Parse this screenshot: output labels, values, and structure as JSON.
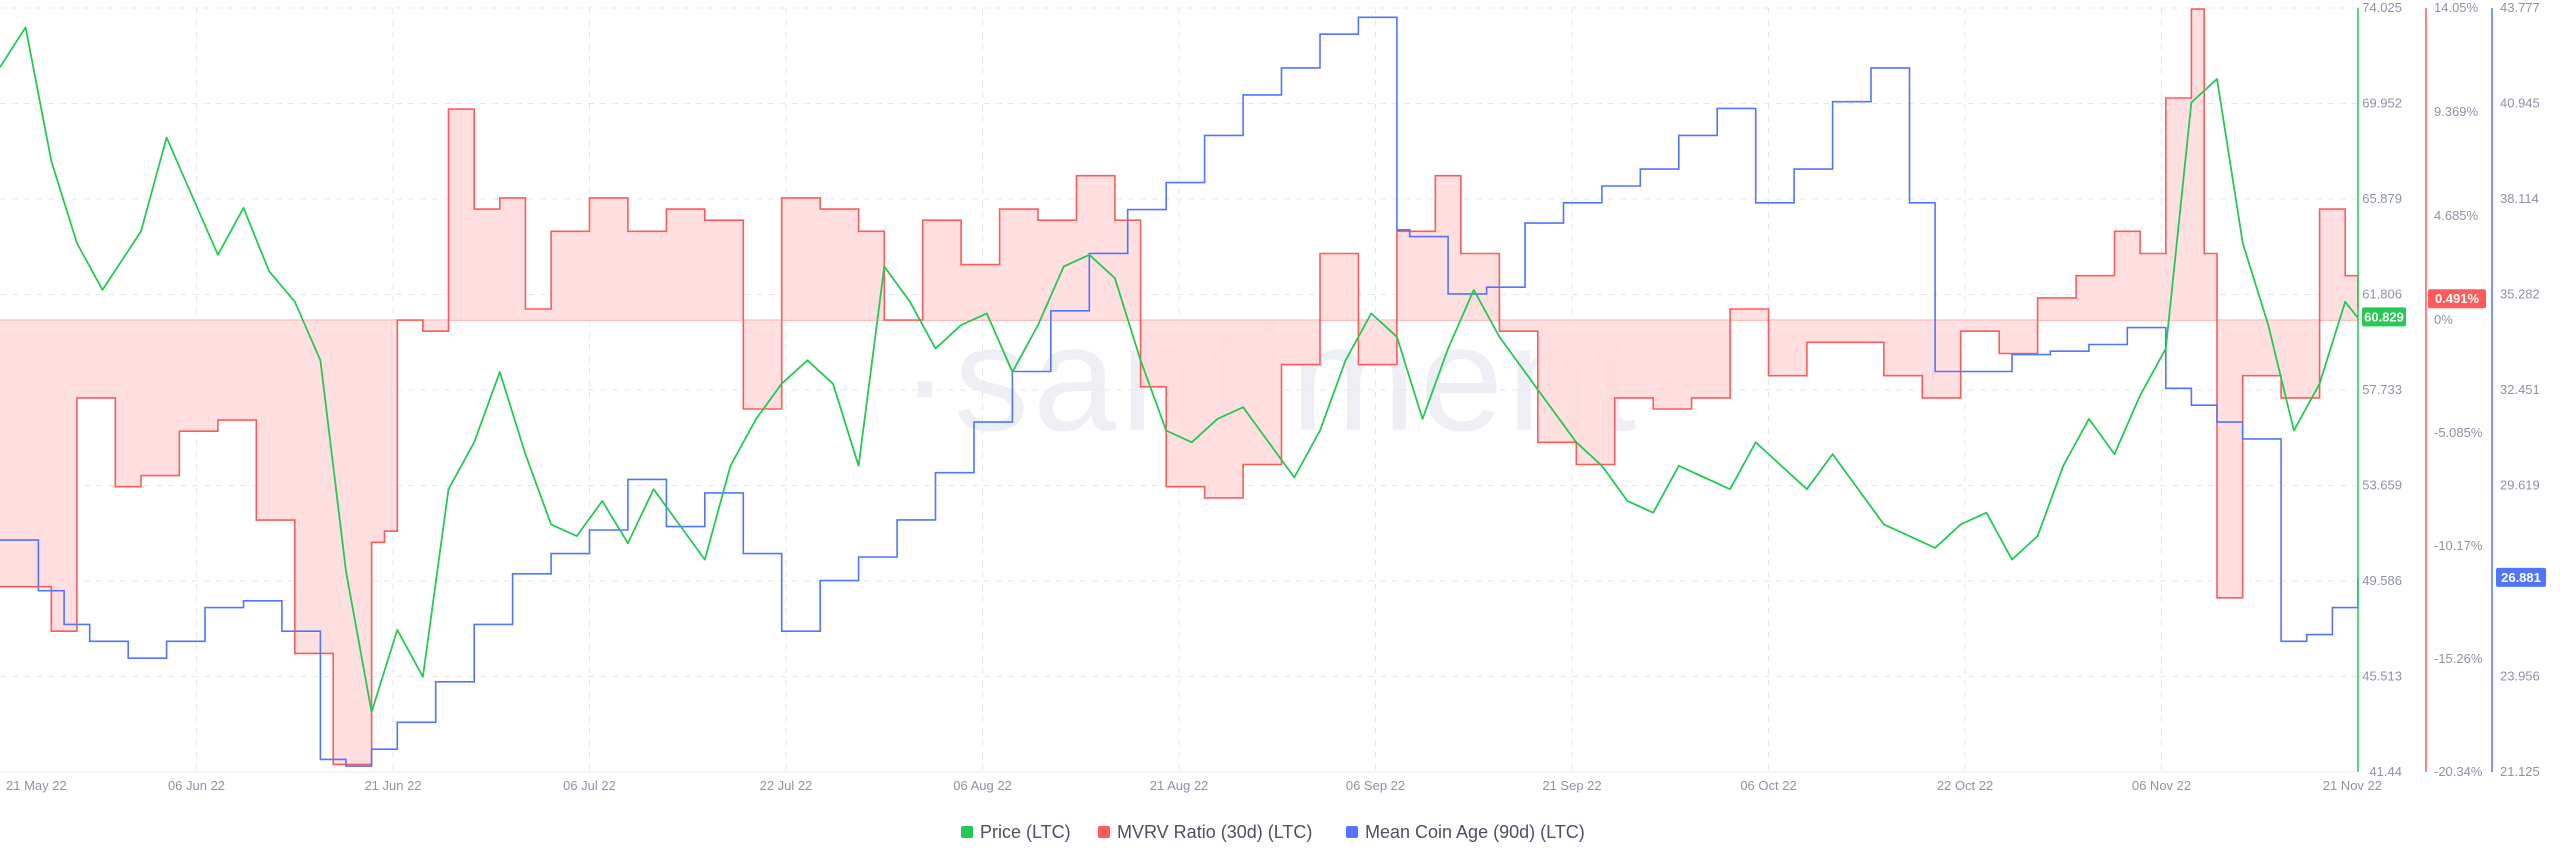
{
  "watermark": "·santiment·",
  "colors": {
    "price": "#26c953",
    "mvrv": "#ff5b5b",
    "age": "#5275ff",
    "mvrv_fill": "#ffd9d9",
    "grid": "#e6e8ef",
    "tick": "#8d93a5"
  },
  "legend": [
    {
      "label": "Price (LTC)",
      "color": "#26c953"
    },
    {
      "label": "MVRV Ratio (30d) (LTC)",
      "color": "#ff5b5b"
    },
    {
      "label": "Mean Coin Age (90d) (LTC)",
      "color": "#5275ff"
    }
  ],
  "x_labels": [
    "21 May 22",
    "06 Jun 22",
    "21 Jun 22",
    "06 Jul 22",
    "22 Jul 22",
    "06 Aug 22",
    "21 Aug 22",
    "06 Sep 22",
    "21 Sep 22",
    "06 Oct 22",
    "22 Oct 22",
    "06 Nov 22",
    "21 Nov 22"
  ],
  "price_ticks": [
    "74.025",
    "69.952",
    "65.879",
    "61.806",
    "57.733",
    "53.659",
    "49.586",
    "45.513",
    "41.44"
  ],
  "mvrv_ticks": [
    "14.05%",
    "9.369%",
    "4.685%",
    "0%",
    "-5.085%",
    "-10.17%",
    "-15.26%",
    "-20.34%"
  ],
  "age_ticks": [
    "43.777",
    "40.945",
    "38.114",
    "35.282",
    "32.451",
    "29.619",
    "26.881",
    "23.956",
    "21.125"
  ],
  "badges": {
    "price": "60.829",
    "mvrv": "0.491%",
    "age": "26.881"
  },
  "chart_data": {
    "type": "line",
    "x_start": "2022-05-21",
    "x_end": "2022-11-21",
    "series": [
      {
        "name": "Price (LTC)",
        "axis": "right-1",
        "ylim": [
          41.44,
          74.025
        ],
        "x": [
          "2022-05-21",
          "2022-05-23",
          "2022-05-25",
          "2022-05-27",
          "2022-05-29",
          "2022-06-01",
          "2022-06-03",
          "2022-06-05",
          "2022-06-07",
          "2022-06-09",
          "2022-06-11",
          "2022-06-13",
          "2022-06-15",
          "2022-06-17",
          "2022-06-19",
          "2022-06-21",
          "2022-06-23",
          "2022-06-25",
          "2022-06-27",
          "2022-06-29",
          "2022-07-01",
          "2022-07-03",
          "2022-07-05",
          "2022-07-07",
          "2022-07-09",
          "2022-07-11",
          "2022-07-13",
          "2022-07-15",
          "2022-07-17",
          "2022-07-19",
          "2022-07-21",
          "2022-07-23",
          "2022-07-25",
          "2022-07-27",
          "2022-07-29",
          "2022-07-31",
          "2022-08-02",
          "2022-08-04",
          "2022-08-06",
          "2022-08-08",
          "2022-08-10",
          "2022-08-12",
          "2022-08-14",
          "2022-08-16",
          "2022-08-18",
          "2022-08-20",
          "2022-08-22",
          "2022-08-24",
          "2022-08-26",
          "2022-08-28",
          "2022-08-30",
          "2022-09-01",
          "2022-09-03",
          "2022-09-05",
          "2022-09-07",
          "2022-09-09",
          "2022-09-11",
          "2022-09-13",
          "2022-09-15",
          "2022-09-17",
          "2022-09-19",
          "2022-09-21",
          "2022-09-23",
          "2022-09-25",
          "2022-09-27",
          "2022-09-29",
          "2022-10-01",
          "2022-10-03",
          "2022-10-05",
          "2022-10-07",
          "2022-10-09",
          "2022-10-11",
          "2022-10-13",
          "2022-10-15",
          "2022-10-17",
          "2022-10-19",
          "2022-10-21",
          "2022-10-23",
          "2022-10-25",
          "2022-10-27",
          "2022-10-29",
          "2022-10-31",
          "2022-11-02",
          "2022-11-04",
          "2022-11-06",
          "2022-11-08",
          "2022-11-10",
          "2022-11-12",
          "2022-11-14",
          "2022-11-16",
          "2022-11-18",
          "2022-11-20",
          "2022-11-21"
        ],
        "values": [
          71.5,
          73.2,
          67.5,
          64.0,
          62.0,
          64.5,
          68.5,
          66.0,
          63.5,
          65.5,
          62.8,
          61.5,
          59.0,
          50.0,
          44.0,
          47.5,
          45.5,
          53.5,
          55.5,
          58.5,
          55.0,
          52.0,
          51.5,
          53.0,
          51.2,
          53.5,
          52.0,
          50.5,
          54.5,
          56.5,
          58.0,
          59.0,
          58.0,
          54.5,
          63.0,
          61.5,
          59.5,
          60.5,
          61.0,
          58.5,
          60.5,
          63.0,
          63.5,
          62.5,
          59.0,
          56.0,
          55.5,
          56.5,
          57.0,
          55.5,
          54.0,
          56.0,
          59.0,
          61.0,
          60.0,
          56.5,
          59.5,
          62.0,
          60.0,
          58.5,
          57.0,
          55.5,
          54.5,
          53.0,
          52.5,
          54.5,
          54.0,
          53.5,
          55.5,
          54.5,
          53.5,
          55.0,
          53.5,
          52.0,
          51.5,
          51.0,
          52.0,
          52.5,
          50.5,
          51.5,
          54.5,
          56.5,
          55.0,
          57.5,
          59.5,
          70.0,
          71.0,
          64.0,
          60.5,
          56.0,
          58.0,
          61.5,
          60.8
        ]
      },
      {
        "name": "MVRV Ratio (30d) (LTC)",
        "axis": "right-2",
        "ylim": [
          -20.34,
          14.05
        ],
        "x": [
          "2022-05-21",
          "2022-05-25",
          "2022-05-27",
          "2022-05-30",
          "2022-06-01",
          "2022-06-04",
          "2022-06-07",
          "2022-06-10",
          "2022-06-13",
          "2022-06-16",
          "2022-06-18",
          "2022-06-19",
          "2022-06-20",
          "2022-06-21",
          "2022-06-23",
          "2022-06-25",
          "2022-06-27",
          "2022-06-29",
          "2022-07-01",
          "2022-07-03",
          "2022-07-06",
          "2022-07-09",
          "2022-07-12",
          "2022-07-15",
          "2022-07-18",
          "2022-07-21",
          "2022-07-24",
          "2022-07-27",
          "2022-07-29",
          "2022-08-01",
          "2022-08-04",
          "2022-08-07",
          "2022-08-10",
          "2022-08-13",
          "2022-08-16",
          "2022-08-18",
          "2022-08-20",
          "2022-08-23",
          "2022-08-26",
          "2022-08-29",
          "2022-09-01",
          "2022-09-04",
          "2022-09-07",
          "2022-09-10",
          "2022-09-12",
          "2022-09-15",
          "2022-09-18",
          "2022-09-21",
          "2022-09-24",
          "2022-09-27",
          "2022-09-30",
          "2022-10-03",
          "2022-10-06",
          "2022-10-09",
          "2022-10-12",
          "2022-10-15",
          "2022-10-18",
          "2022-10-21",
          "2022-10-24",
          "2022-10-27",
          "2022-10-30",
          "2022-11-02",
          "2022-11-04",
          "2022-11-06",
          "2022-11-08",
          "2022-11-09",
          "2022-11-10",
          "2022-11-12",
          "2022-11-15",
          "2022-11-18",
          "2022-11-20",
          "2022-11-21"
        ],
        "values": [
          -12.0,
          -14.0,
          -3.5,
          -7.5,
          -7.0,
          -5.0,
          -4.5,
          -9.0,
          -15.0,
          -20.0,
          -20.0,
          -10.0,
          -9.5,
          0.0,
          -0.5,
          9.5,
          5.0,
          5.5,
          0.5,
          4.0,
          5.5,
          4.0,
          5.0,
          4.5,
          -4.0,
          5.5,
          5.0,
          4.0,
          0.0,
          4.5,
          2.5,
          5.0,
          4.5,
          6.5,
          4.5,
          -3.0,
          -7.5,
          -8.0,
          -6.5,
          -2.0,
          3.0,
          -2.0,
          4.0,
          6.5,
          3.0,
          -0.5,
          -5.5,
          -6.5,
          -3.5,
          -4.0,
          -3.5,
          0.5,
          -2.5,
          -1.0,
          -1.0,
          -2.5,
          -3.5,
          -0.5,
          -1.5,
          1.0,
          2.0,
          4.0,
          3.0,
          10.0,
          14.0,
          3.0,
          -12.5,
          -2.5,
          -3.5,
          5.0,
          2.0,
          0.491
        ]
      },
      {
        "name": "Mean Coin Age (90d) (LTC)",
        "axis": "right-3",
        "ylim": [
          21.125,
          43.777
        ],
        "x": [
          "2022-05-21",
          "2022-05-24",
          "2022-05-26",
          "2022-05-28",
          "2022-05-31",
          "2022-06-03",
          "2022-06-06",
          "2022-06-09",
          "2022-06-12",
          "2022-06-15",
          "2022-06-17",
          "2022-06-19",
          "2022-06-21",
          "2022-06-24",
          "2022-06-27",
          "2022-06-30",
          "2022-07-03",
          "2022-07-06",
          "2022-07-09",
          "2022-07-12",
          "2022-07-15",
          "2022-07-18",
          "2022-07-21",
          "2022-07-24",
          "2022-07-27",
          "2022-07-30",
          "2022-08-02",
          "2022-08-05",
          "2022-08-08",
          "2022-08-11",
          "2022-08-14",
          "2022-08-17",
          "2022-08-20",
          "2022-08-23",
          "2022-08-26",
          "2022-08-29",
          "2022-09-01",
          "2022-09-04",
          "2022-09-07",
          "2022-09-08",
          "2022-09-11",
          "2022-09-14",
          "2022-09-17",
          "2022-09-20",
          "2022-09-23",
          "2022-09-26",
          "2022-09-29",
          "2022-10-02",
          "2022-10-05",
          "2022-10-08",
          "2022-10-11",
          "2022-10-14",
          "2022-10-17",
          "2022-10-19",
          "2022-10-22",
          "2022-10-25",
          "2022-10-28",
          "2022-10-31",
          "2022-11-03",
          "2022-11-06",
          "2022-11-08",
          "2022-11-10",
          "2022-11-12",
          "2022-11-15",
          "2022-11-17",
          "2022-11-19",
          "2022-11-21"
        ],
        "values": [
          28.0,
          26.5,
          25.5,
          25.0,
          24.5,
          25.0,
          26.0,
          26.2,
          25.3,
          21.5,
          21.3,
          21.8,
          22.6,
          23.8,
          25.5,
          27.0,
          27.6,
          28.3,
          29.8,
          28.4,
          29.4,
          27.6,
          25.3,
          26.8,
          27.5,
          28.6,
          30.0,
          31.5,
          33.0,
          34.8,
          36.5,
          37.8,
          38.6,
          40.0,
          41.2,
          42.0,
          43.0,
          43.5,
          37.2,
          37.0,
          35.3,
          35.5,
          37.4,
          38.0,
          38.5,
          39.0,
          40.0,
          40.8,
          38.0,
          39.0,
          41.0,
          42.0,
          38.0,
          33.0,
          33.0,
          33.5,
          33.6,
          33.8,
          34.3,
          32.5,
          32.0,
          31.5,
          31.0,
          25.0,
          25.2,
          26.0,
          26.881
        ]
      }
    ]
  }
}
